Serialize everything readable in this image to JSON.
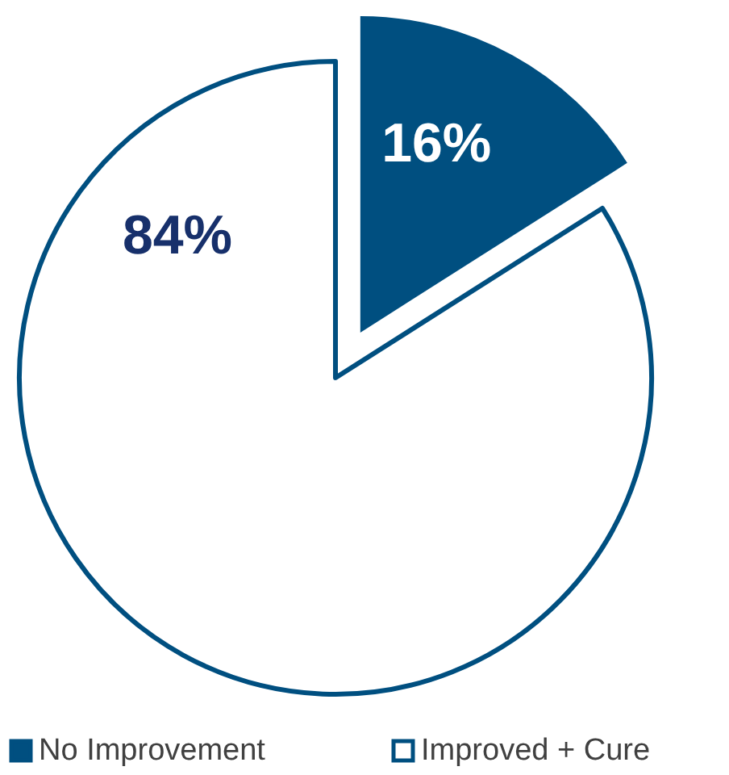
{
  "chart_data": {
    "type": "pie",
    "categories": [
      "No Improvement",
      "Improved + Cure"
    ],
    "values": [
      16,
      84
    ],
    "colors": [
      "#004f80",
      "#ffffff"
    ],
    "value_labels": [
      "16%",
      "84%"
    ],
    "legend": "bottom"
  }
}
